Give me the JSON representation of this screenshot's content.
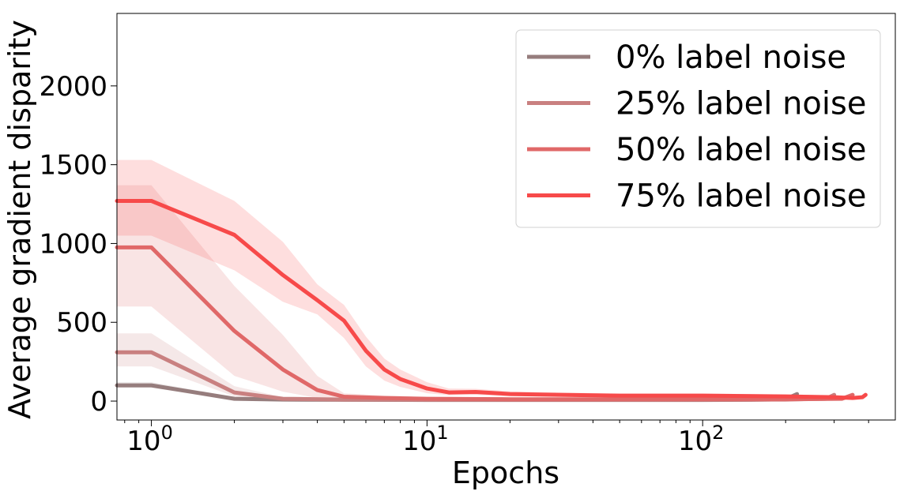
{
  "chart_data": {
    "type": "line",
    "title": "",
    "xlabel": "Epochs",
    "ylabel": "Average gradient disparity",
    "xscale": "log",
    "xlim": [
      0.75,
      500
    ],
    "ylim": [
      -120,
      2460
    ],
    "x_ticks": [
      {
        "value": 1,
        "base": "10",
        "exp": "0"
      },
      {
        "value": 10,
        "base": "10",
        "exp": "1"
      },
      {
        "value": 100,
        "base": "10",
        "exp": "2"
      }
    ],
    "y_ticks": [
      0,
      500,
      1000,
      1500,
      2000
    ],
    "grid": false,
    "legend_position": "top-right",
    "series": [
      {
        "name": "0% label noise",
        "color": "#967d7d",
        "x": [
          0.75,
          1,
          2,
          3,
          5,
          10,
          20,
          50,
          100,
          150,
          200,
          220
        ],
        "y": [
          100,
          100,
          15,
          10,
          8,
          7,
          7,
          7,
          7,
          8,
          12,
          45
        ],
        "lower": [
          85,
          85,
          8,
          6,
          5,
          5,
          5,
          5,
          5,
          5,
          8,
          35
        ],
        "upper": [
          120,
          120,
          25,
          15,
          12,
          10,
          10,
          10,
          10,
          12,
          18,
          55
        ]
      },
      {
        "name": "25% label noise",
        "color": "#c98080",
        "x": [
          0.75,
          1,
          2,
          3,
          5,
          10,
          20,
          50,
          100,
          200,
          280,
          300
        ],
        "y": [
          310,
          310,
          55,
          15,
          10,
          8,
          8,
          8,
          9,
          10,
          15,
          40
        ],
        "lower": [
          220,
          220,
          30,
          8,
          6,
          5,
          5,
          5,
          5,
          6,
          10,
          30
        ],
        "upper": [
          430,
          430,
          95,
          25,
          15,
          12,
          12,
          12,
          13,
          15,
          20,
          50
        ]
      },
      {
        "name": "50% label noise",
        "color": "#e06868",
        "x": [
          0.75,
          1,
          2,
          3,
          4,
          5,
          7,
          10,
          20,
          50,
          100,
          200,
          320,
          350
        ],
        "y": [
          975,
          975,
          445,
          200,
          70,
          28,
          20,
          15,
          12,
          12,
          12,
          12,
          15,
          40
        ],
        "lower": [
          600,
          600,
          160,
          60,
          20,
          12,
          10,
          8,
          7,
          7,
          7,
          7,
          10,
          30
        ],
        "upper": [
          1370,
          1370,
          730,
          420,
          160,
          50,
          35,
          25,
          20,
          18,
          18,
          18,
          22,
          50
        ]
      },
      {
        "name": "75% label noise",
        "color": "#f74a4a",
        "x": [
          0.75,
          1,
          2,
          3,
          4,
          5,
          6,
          7,
          8,
          10,
          12,
          15,
          20,
          30,
          50,
          100,
          200,
          300,
          350,
          380,
          390
        ],
        "y": [
          1270,
          1270,
          1055,
          800,
          640,
          510,
          320,
          200,
          140,
          80,
          55,
          58,
          45,
          40,
          35,
          35,
          30,
          25,
          20,
          25,
          40
        ],
        "lower": [
          1050,
          1050,
          830,
          630,
          550,
          400,
          220,
          130,
          90,
          50,
          38,
          40,
          32,
          28,
          25,
          25,
          20,
          16,
          12,
          15,
          30
        ],
        "upper": [
          1530,
          1530,
          1270,
          1010,
          740,
          610,
          410,
          270,
          200,
          120,
          80,
          78,
          62,
          55,
          48,
          48,
          42,
          36,
          32,
          35,
          50
        ]
      }
    ]
  }
}
